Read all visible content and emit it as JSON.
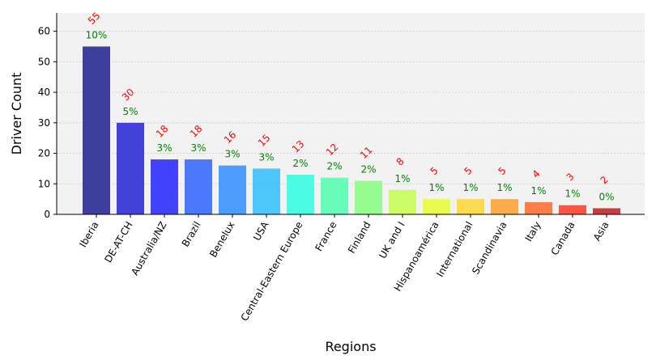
{
  "chart_data": {
    "type": "bar",
    "title": "",
    "xlabel": "Regions",
    "ylabel": "Driver Count",
    "ylim": [
      0,
      66
    ],
    "yticks": [
      0,
      10,
      20,
      30,
      40,
      50,
      60
    ],
    "grid": true,
    "categories": [
      "Iberia",
      "DE-AT-CH",
      "Australia/NZ",
      "Brazil",
      "Benelux",
      "USA",
      "Central-Eastern Europe",
      "France",
      "Finland",
      "UK and I",
      "Hispanoamérica",
      "International",
      "Scandinavia",
      "Italy",
      "Canada",
      "Asia"
    ],
    "values": [
      55,
      30,
      18,
      18,
      16,
      15,
      13,
      12,
      11,
      8,
      5,
      5,
      5,
      4,
      3,
      2
    ],
    "count_labels": [
      "55",
      "30",
      "18",
      "18",
      "16",
      "15",
      "13",
      "12",
      "11",
      "8",
      "5",
      "5",
      "5",
      "4",
      "3",
      "2"
    ],
    "percent_labels": [
      "10%",
      "5%",
      "3%",
      "3%",
      "3%",
      "3%",
      "2%",
      "2%",
      "2%",
      "1%",
      "1%",
      "1%",
      "1%",
      "1%",
      "1%",
      "0%"
    ],
    "colors": [
      "#1f1f8f",
      "#2323d6",
      "#2525fe",
      "#2f63fe",
      "#2f8efe",
      "#2fbefe",
      "#2ffee0",
      "#50feb2",
      "#86fe80",
      "#c2fe4c",
      "#e8fe30",
      "#fed530",
      "#fea030",
      "#fe6a2a",
      "#fe3a25",
      "#c61c1c"
    ],
    "count_label_color": "#ff0000",
    "percent_label_color": "#008000",
    "plot_background": "#f2f2f2"
  }
}
